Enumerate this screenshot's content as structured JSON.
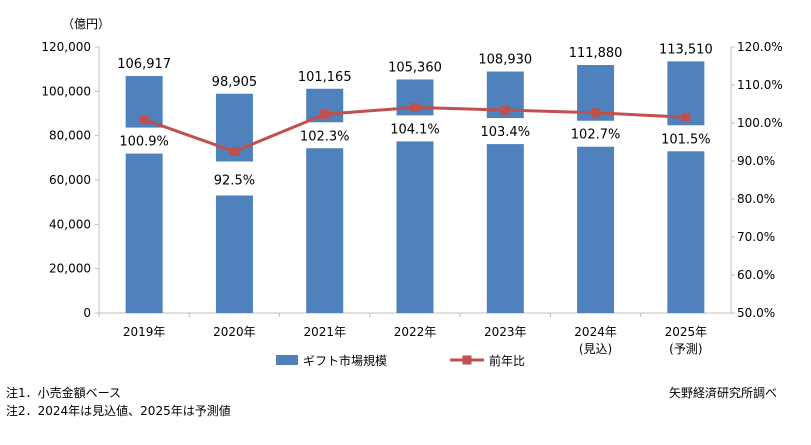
{
  "chart_data": {
    "type": "bar",
    "y_unit_label": "（億円）",
    "categories": [
      "2019年",
      "2020年",
      "2021年",
      "2022年",
      "2023年",
      "2024年",
      "2025年"
    ],
    "category_sublabels": [
      "",
      "",
      "",
      "",
      "",
      "(見込)",
      "(予測)"
    ],
    "series": [
      {
        "name": "ギフト市場規模",
        "type": "bar",
        "axis": "left",
        "color": "#4f81bd",
        "values": [
          106917,
          98905,
          101165,
          105360,
          108930,
          111880,
          113510
        ],
        "value_labels": [
          "106,917",
          "98,905",
          "101,165",
          "105,360",
          "108,930",
          "111,880",
          "113,510"
        ]
      },
      {
        "name": "前年比",
        "type": "line",
        "axis": "right",
        "color": "#c0504d",
        "values": [
          100.9,
          92.5,
          102.3,
          104.1,
          103.4,
          102.7,
          101.5
        ],
        "value_labels": [
          "100.9%",
          "92.5%",
          "102.3%",
          "104.1%",
          "103.4%",
          "102.7%",
          "101.5%"
        ]
      }
    ],
    "left_axis": {
      "range": [
        0,
        120000
      ],
      "ticks": [
        0,
        20000,
        40000,
        60000,
        80000,
        100000,
        120000
      ],
      "tick_labels": [
        "0",
        "20,000",
        "40,000",
        "60,000",
        "80,000",
        "100,000",
        "120,000"
      ]
    },
    "right_axis": {
      "range": [
        50,
        120
      ],
      "ticks": [
        50,
        60,
        70,
        80,
        90,
        100,
        110,
        120
      ],
      "tick_labels": [
        "50.0%",
        "60.0%",
        "70.0%",
        "80.0%",
        "90.0%",
        "100.0%",
        "110.0%",
        "120.0%"
      ]
    },
    "grid": false,
    "legend_position": "bottom"
  },
  "notes": {
    "note1": "注1．小売金額ベース",
    "note2": "注2．2024年は見込値、2025年は予測値",
    "source": "矢野経済研究所調べ"
  }
}
